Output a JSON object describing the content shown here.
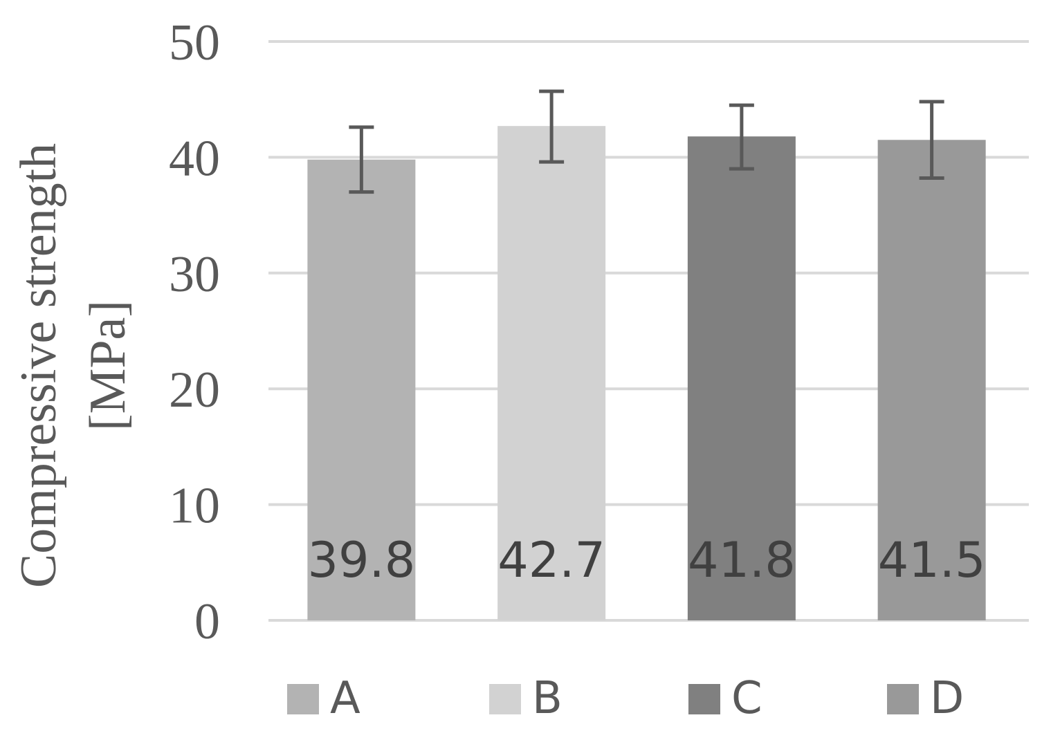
{
  "chart_data": {
    "type": "bar",
    "title": "",
    "xlabel": "",
    "ylabel": [
      "Compressive strength",
      "[MPa]"
    ],
    "ylim": [
      0,
      50
    ],
    "yticks": [
      0,
      10,
      20,
      30,
      40,
      50
    ],
    "grid": true,
    "legend_position": "bottom",
    "categories": [
      "A",
      "B",
      "C",
      "D"
    ],
    "values": [
      39.8,
      42.7,
      41.8,
      41.5
    ],
    "data_labels": [
      "39.8",
      "42.7",
      "41.8",
      "41.5"
    ],
    "error_low": [
      37.0,
      39.6,
      39.0,
      38.2
    ],
    "error_high": [
      42.6,
      45.7,
      44.5,
      44.8
    ],
    "colors": [
      "#b3b3b3",
      "#d2d2d2",
      "#808080",
      "#999999"
    ],
    "legend": [
      "A",
      "B",
      "C",
      "D"
    ]
  }
}
